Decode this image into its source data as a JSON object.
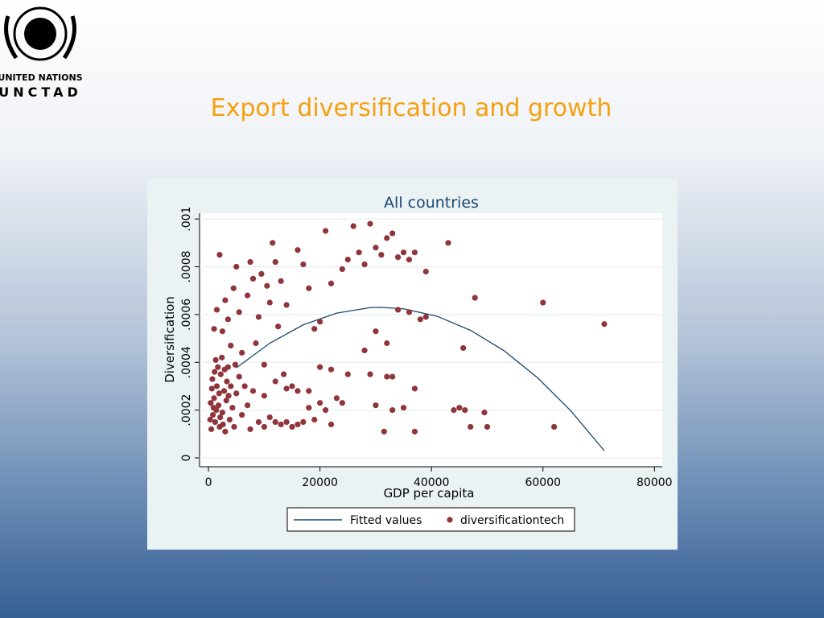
{
  "slide": {
    "title": "Export diversification and growth",
    "logo_line1": "UNITED NATIONS",
    "logo_line2": "UNCTAD"
  },
  "chart_data": {
    "type": "scatter",
    "title": "All countries",
    "xlabel": "GDP per capita",
    "ylabel": "Diversification",
    "xlim": [
      -1600,
      81400
    ],
    "ylim": [
      -3.7e-05,
      0.001024
    ],
    "xticks": [
      0,
      20000,
      40000,
      60000,
      80000
    ],
    "yticks": [
      0,
      {
        "value": 0.0002,
        "label": ".0002"
      },
      {
        "value": 0.0004,
        "label": ".0004"
      },
      {
        "value": 0.0006,
        "label": ".0006"
      },
      {
        "value": 0.0008,
        "label": ".0008"
      },
      {
        "value": 0.001,
        "label": ".001"
      }
    ],
    "grid": true,
    "legend": "bottom",
    "series": [
      {
        "name": "Fitted values",
        "color": "#1a476f",
        "kind": "line",
        "x": [
          5000,
          11000,
          17000,
          23000,
          29000,
          31000,
          35000,
          41000,
          47000,
          53000,
          59000,
          65000,
          71000
        ],
        "values": [
          0.000377,
          0.00048,
          0.000557,
          0.000606,
          0.000629,
          0.00063,
          0.000624,
          0.000593,
          0.000534,
          0.000449,
          0.000336,
          0.000197,
          3e-05
        ]
      },
      {
        "name": "diversificationtech",
        "color": "#90353b",
        "kind": "points",
        "x": [
          500,
          800,
          1000,
          1200,
          1500,
          1800,
          2000,
          2200,
          2500,
          2800,
          3000,
          3200,
          3500,
          3800,
          4000,
          4300,
          4600,
          5000,
          5500,
          6000,
          700,
          1300,
          1700,
          2400,
          600,
          900,
          1100,
          1900,
          2600,
          3300,
          300,
          400,
          1400,
          2100,
          2900,
          3600,
          4800,
          6500,
          7000,
          7500,
          1000,
          1500,
          2000,
          2500,
          3000,
          3500,
          4000,
          4500,
          5000,
          5500,
          6000,
          7000,
          7500,
          8000,
          8500,
          9000,
          9500,
          10000,
          10500,
          11000,
          11500,
          12000,
          12500,
          13000,
          13500,
          14000,
          15000,
          16000,
          17000,
          18000,
          19000,
          20000,
          21000,
          22000,
          24000,
          25000,
          26000,
          27000,
          28000,
          29000,
          30000,
          31000,
          32000,
          33000,
          34000,
          35000,
          36000,
          37000,
          39000,
          43000,
          20000,
          22000,
          25000,
          28000,
          30000,
          32000,
          34000,
          36000,
          38000,
          39000,
          47800,
          60000,
          71000,
          45700,
          32000,
          37000,
          33000,
          9000,
          10000,
          11000,
          12000,
          13000,
          14000,
          15000,
          16000,
          17000,
          18000,
          19000,
          20000,
          21000,
          22000,
          23000,
          24000,
          29000,
          30000,
          31500,
          33000,
          35000,
          37000,
          44000,
          45000,
          46000,
          47000,
          49500,
          50000,
          62000,
          8000,
          10000,
          12000,
          14000,
          16000,
          18000
        ],
        "values": [
          0.00012,
          0.00018,
          0.00025,
          0.00015,
          0.0003,
          0.00022,
          0.00013,
          0.00035,
          0.00019,
          0.00028,
          0.00011,
          0.00024,
          0.00038,
          0.00016,
          0.0003,
          0.00021,
          0.00013,
          0.00027,
          0.00034,
          0.00018,
          0.00033,
          0.00041,
          0.00038,
          0.00042,
          0.00029,
          0.00021,
          0.00036,
          0.00027,
          0.00014,
          0.00032,
          0.00016,
          0.00023,
          0.0002,
          0.00017,
          0.00037,
          0.00026,
          0.00039,
          0.0003,
          0.00022,
          0.00012,
          0.00054,
          0.00062,
          0.00085,
          0.00053,
          0.00066,
          0.00058,
          0.00047,
          0.00071,
          0.0008,
          0.00061,
          0.00044,
          0.00068,
          0.00082,
          0.00075,
          0.00048,
          0.00059,
          0.00077,
          0.00039,
          0.00072,
          0.00065,
          0.0009,
          0.00082,
          0.00055,
          0.00074,
          0.00035,
          0.00064,
          0.0003,
          0.00087,
          0.00081,
          0.00071,
          0.00054,
          0.00057,
          0.00095,
          0.00073,
          0.00079,
          0.00083,
          0.00097,
          0.00086,
          0.00081,
          0.00098,
          0.00088,
          0.00085,
          0.00092,
          0.00094,
          0.00084,
          0.00086,
          0.00083,
          0.00086,
          0.00078,
          0.0009,
          0.00038,
          0.00037,
          0.00035,
          0.00045,
          0.00053,
          0.00048,
          0.00062,
          0.00061,
          0.00058,
          0.00059,
          0.00067,
          0.00065,
          0.00056,
          0.00046,
          0.00034,
          0.00029,
          0.00034,
          0.00015,
          0.00013,
          0.00017,
          0.00015,
          0.00014,
          0.00015,
          0.00013,
          0.00014,
          0.00015,
          0.00021,
          0.00016,
          0.00023,
          0.0002,
          0.00014,
          0.00025,
          0.00023,
          0.00035,
          0.00022,
          0.00011,
          0.0002,
          0.00021,
          0.00011,
          0.0002,
          0.00021,
          0.0002,
          0.00013,
          0.00019,
          0.00013,
          0.00013,
          0.00028,
          0.00026,
          0.00032,
          0.00029,
          0.00028,
          0.00028
        ]
      }
    ]
  }
}
